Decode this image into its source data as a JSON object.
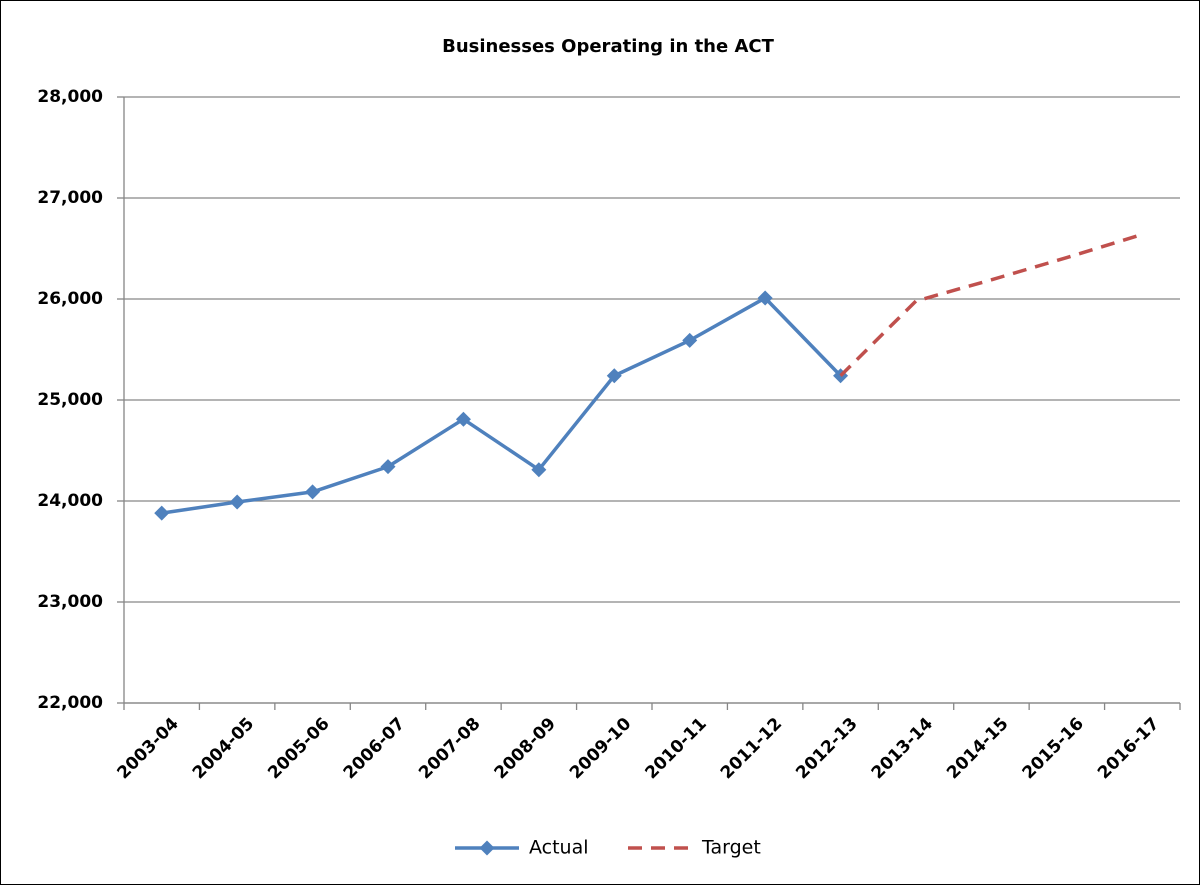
{
  "chart_data": {
    "type": "line",
    "title": "Businesses Operating in the ACT",
    "categories": [
      "2003-04",
      "2004-05",
      "2005-06",
      "2006-07",
      "2007-08",
      "2008-09",
      "2009-10",
      "2010-11",
      "2011-12",
      "2012-13",
      "2013-14",
      "2014-15",
      "2015-16",
      "2016-17"
    ],
    "series": [
      {
        "name": "Actual",
        "color": "#4f81bd",
        "marker": "diamond",
        "dash": false,
        "values": [
          23880,
          23990,
          24090,
          24340,
          24810,
          24310,
          25240,
          25590,
          26010,
          25240,
          null,
          null,
          null,
          null
        ]
      },
      {
        "name": "Target",
        "color": "#c0504d",
        "marker": null,
        "dash": true,
        "values": [
          null,
          null,
          null,
          null,
          null,
          null,
          null,
          null,
          null,
          25240,
          25980,
          26190,
          26410,
          26640
        ]
      }
    ],
    "ylim": [
      22000,
      28000
    ],
    "yticks": [
      {
        "value": 22000,
        "label": "22,000"
      },
      {
        "value": 23000,
        "label": "23,000"
      },
      {
        "value": 24000,
        "label": "24,000"
      },
      {
        "value": 25000,
        "label": "25,000"
      },
      {
        "value": 26000,
        "label": "26,000"
      },
      {
        "value": 27000,
        "label": "27,000"
      },
      {
        "value": 28000,
        "label": "28,000"
      }
    ],
    "grid": true,
    "legend": "bottom"
  }
}
